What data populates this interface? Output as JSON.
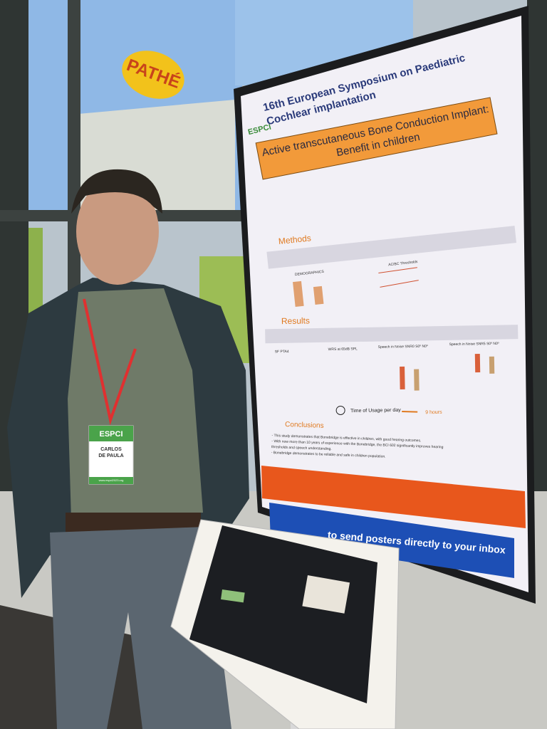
{
  "sign": {
    "text": "PATHÉ"
  },
  "poster": {
    "header": {
      "logo": "ESPCI",
      "title": [
        "16th European Symposium on Paediatric",
        "Cochlear implantation"
      ]
    },
    "title": [
      "Active transcutaneous Bone Conduction Implant:",
      "Benefit in children"
    ],
    "sections": {
      "methods": "Methods",
      "results": "Results",
      "conclusions": "Conclusions"
    },
    "charts": [
      "DEMOGRAPHICS",
      "AC/BC Thresholds",
      "SF PTA4",
      "WRS at 65dB SPL",
      "Speech in Noise SNR0 S0º N0º",
      "Speech in Noise SNR5 S0º N0º"
    ],
    "usage": {
      "label": "Time of Usage per day",
      "value": "9 hours"
    },
    "conclusions": [
      "- This study demonstrates that Bonebridge is effective in children, with good hearing outcomes.",
      "- With now more than 10 years of experience with the Bonebridge, the BCI 602 significantly improves hearing",
      "thresholds and speech understanding.",
      "- Bonebridge demonstrates to be reliable and safe in children population."
    ],
    "banner": "to send posters directly to your inbox"
  },
  "badge": {
    "logo": "ESPCI",
    "name": [
      "CARLOS",
      "DE PAULA"
    ],
    "url": "www.espci2023.org"
  }
}
